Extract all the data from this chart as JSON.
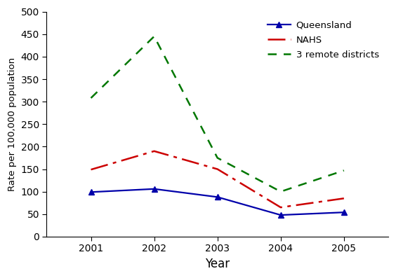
{
  "years": [
    2001,
    2002,
    2003,
    2004,
    2005
  ],
  "queensland": [
    99,
    106,
    88,
    48,
    54
  ],
  "nahs": [
    149,
    190,
    150,
    65,
    85
  ],
  "remote": [
    308,
    445,
    175,
    100,
    147
  ],
  "queensland_color": "#0000AA",
  "nahs_color": "#CC0000",
  "remote_color": "#007700",
  "xlabel": "Year",
  "ylabel": "Rate per 100,000 population",
  "ylim": [
    0,
    500
  ],
  "yticks": [
    0,
    50,
    100,
    150,
    200,
    250,
    300,
    350,
    400,
    450,
    500
  ],
  "legend_labels": [
    "Queensland",
    "NAHS",
    "3 remote districts"
  ]
}
